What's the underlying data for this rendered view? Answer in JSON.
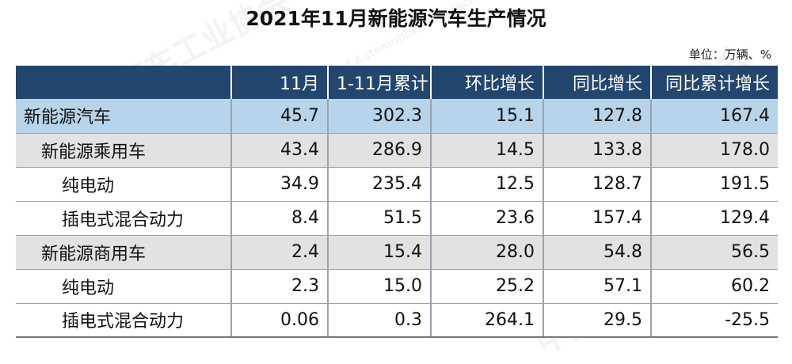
{
  "title": "2021年11月新能源汽车生产情况",
  "unit": "单位：万辆、%",
  "columns": [
    "",
    "11月",
    "1-11月累计",
    "环比增长",
    "同比增长",
    "同比累计增长"
  ],
  "rows": [
    {
      "label": "新能源汽车",
      "level": 0,
      "values": [
        "45.7",
        "302.3",
        "15.1",
        "127.8",
        "167.4"
      ]
    },
    {
      "label": "新能源乘用车",
      "level": 1,
      "values": [
        "43.4",
        "286.9",
        "14.5",
        "133.8",
        "178.0"
      ]
    },
    {
      "label": "纯电动",
      "level": 2,
      "values": [
        "34.9",
        "235.4",
        "12.5",
        "128.7",
        "191.5"
      ]
    },
    {
      "label": "插电式混合动力",
      "level": 2,
      "values": [
        "8.4",
        "51.5",
        "23.6",
        "157.4",
        "129.4"
      ]
    },
    {
      "label": "新能源商用车",
      "level": 1,
      "values": [
        "2.4",
        "15.4",
        "28.0",
        "54.8",
        "56.5"
      ]
    },
    {
      "label": "纯电动",
      "level": 2,
      "values": [
        "2.3",
        "15.0",
        "25.2",
        "57.1",
        "60.2"
      ]
    },
    {
      "label": "插电式混合动力",
      "level": 2,
      "values": [
        "0.06",
        "0.3",
        "264.1",
        "29.5",
        "-25.5"
      ]
    }
  ],
  "watermark": {
    "text_cn": "中国汽车工业协会",
    "text_en": "China Association of Automobile Manufacturers"
  },
  "colors": {
    "header_bg": "#23466f",
    "header_text": "#ffffff",
    "total_row_bg": "#b8d4ea",
    "subtotal_row_bg": "#e2e2e2",
    "detail_row_bg": "#ffffff",
    "border": "#9aa3ad"
  }
}
